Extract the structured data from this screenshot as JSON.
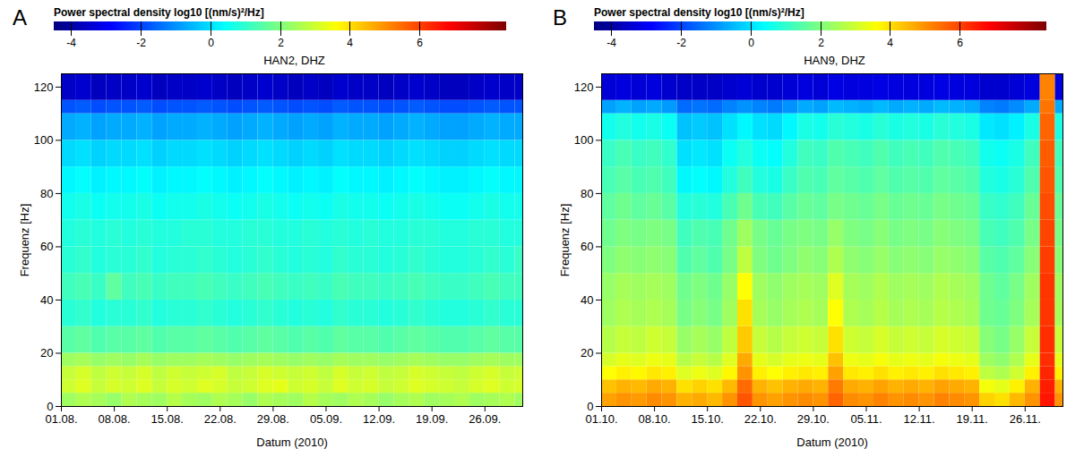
{
  "chart_data": [
    {
      "type": "heatmap",
      "panel": "A",
      "title": "HAN2, DHZ",
      "x_label": "Datum (2010)",
      "y_label": "Frequenz [Hz]",
      "xlim": [
        "2010-08-01",
        "2010-10-01"
      ],
      "xticks": [
        {
          "value": "2010-08-01",
          "label": "01.08."
        },
        {
          "value": "2010-08-08",
          "label": "08.08."
        },
        {
          "value": "2010-08-15",
          "label": "15.08."
        },
        {
          "value": "2010-08-22",
          "label": "22.08."
        },
        {
          "value": "2010-08-29",
          "label": "29.08."
        },
        {
          "value": "2010-09-05",
          "label": "05.09."
        },
        {
          "value": "2010-09-12",
          "label": "12.09."
        },
        {
          "value": "2010-09-19",
          "label": "19.09."
        },
        {
          "value": "2010-09-26",
          "label": "26.09."
        }
      ],
      "ylim": [
        0,
        125
      ],
      "yticks": [
        0,
        20,
        40,
        60,
        80,
        100,
        120
      ],
      "x": [
        "2010-08-01",
        "2010-08-03",
        "2010-08-05",
        "2010-08-07",
        "2010-08-09",
        "2010-08-11",
        "2010-08-13",
        "2010-08-15",
        "2010-08-17",
        "2010-08-19",
        "2010-08-21",
        "2010-08-23",
        "2010-08-25",
        "2010-08-27",
        "2010-08-29",
        "2010-08-31",
        "2010-09-02",
        "2010-09-04",
        "2010-09-06",
        "2010-09-08",
        "2010-09-10",
        "2010-09-12",
        "2010-09-14",
        "2010-09-16",
        "2010-09-18",
        "2010-09-20",
        "2010-09-22",
        "2010-09-24",
        "2010-09-26",
        "2010-09-28",
        "2010-09-30"
      ],
      "y_bins": [
        0,
        5,
        10,
        15,
        20,
        30,
        40,
        50,
        60,
        70,
        80,
        90,
        100,
        110,
        115,
        125
      ],
      "values": [
        [
          2.4,
          2.6,
          2.5,
          2.3,
          2.6,
          2.5,
          2.4,
          2.7,
          2.5,
          2.4,
          2.6,
          2.5,
          2.3,
          2.6,
          2.5,
          2.4,
          2.7,
          2.5,
          2.4,
          2.6,
          2.5,
          2.3,
          2.5,
          2.6,
          2.4,
          2.5,
          2.6,
          2.4,
          2.5,
          2.6,
          2.4
        ],
        [
          3.0,
          3.2,
          2.9,
          3.1,
          3.0,
          3.2,
          2.9,
          3.1,
          3.0,
          3.2,
          3.1,
          2.9,
          3.0,
          3.2,
          3.3,
          3.0,
          3.1,
          2.9,
          3.2,
          3.0,
          3.1,
          2.9,
          3.0,
          3.2,
          3.1,
          3.0,
          2.9,
          3.1,
          3.2,
          3.0,
          3.1
        ],
        [
          2.9,
          3.1,
          2.8,
          3.0,
          2.9,
          3.1,
          2.8,
          3.0,
          2.9,
          3.0,
          3.1,
          2.8,
          2.9,
          3.1,
          3.0,
          2.9,
          3.0,
          2.8,
          3.1,
          2.9,
          3.0,
          2.8,
          2.9,
          3.1,
          3.0,
          2.9,
          2.8,
          3.0,
          3.1,
          2.9,
          3.0
        ],
        [
          2.4,
          2.5,
          2.3,
          2.4,
          2.3,
          2.5,
          2.3,
          2.4,
          2.4,
          2.5,
          2.4,
          2.3,
          2.4,
          2.5,
          2.4,
          2.3,
          2.4,
          2.3,
          2.5,
          2.4,
          2.4,
          2.3,
          2.4,
          2.5,
          2.4,
          2.3,
          2.3,
          2.4,
          2.5,
          2.4,
          2.4
        ],
        [
          1.5,
          1.6,
          1.4,
          1.5,
          1.5,
          1.6,
          1.4,
          1.5,
          1.5,
          1.6,
          1.5,
          1.4,
          1.5,
          1.6,
          1.5,
          1.4,
          1.5,
          1.4,
          1.6,
          1.5,
          1.5,
          1.4,
          1.5,
          1.6,
          1.5,
          1.4,
          1.4,
          1.5,
          1.6,
          1.5,
          1.5
        ],
        [
          0.9,
          1.0,
          0.8,
          0.9,
          0.9,
          1.0,
          0.8,
          0.9,
          0.9,
          1.0,
          0.9,
          0.8,
          0.9,
          1.0,
          0.9,
          0.8,
          0.9,
          0.8,
          1.0,
          0.9,
          0.9,
          0.8,
          0.9,
          1.0,
          0.9,
          0.8,
          0.8,
          0.9,
          1.0,
          0.9,
          0.9
        ],
        [
          1.2,
          1.3,
          1.1,
          1.6,
          1.2,
          1.3,
          1.1,
          1.2,
          1.2,
          1.3,
          1.2,
          1.1,
          1.2,
          1.3,
          1.2,
          1.1,
          1.2,
          1.1,
          1.3,
          1.2,
          1.2,
          1.1,
          1.2,
          1.3,
          1.2,
          1.1,
          1.1,
          1.2,
          1.3,
          1.2,
          1.2
        ],
        [
          0.9,
          1.0,
          0.8,
          0.9,
          0.9,
          1.0,
          0.8,
          0.9,
          0.9,
          1.0,
          0.9,
          0.8,
          0.9,
          1.0,
          0.9,
          0.8,
          0.9,
          0.8,
          1.0,
          0.9,
          0.9,
          0.8,
          0.9,
          1.0,
          0.9,
          0.8,
          0.8,
          0.9,
          1.0,
          0.9,
          1.1
        ],
        [
          0.8,
          0.9,
          0.8,
          0.9,
          0.8,
          0.9,
          0.8,
          0.8,
          0.9,
          0.9,
          0.8,
          0.8,
          0.9,
          0.9,
          0.8,
          0.8,
          0.9,
          0.8,
          0.9,
          0.8,
          0.9,
          0.8,
          0.8,
          0.9,
          0.9,
          0.8,
          0.8,
          0.9,
          0.9,
          0.8,
          0.8
        ],
        [
          0.6,
          0.7,
          0.5,
          0.6,
          0.6,
          0.7,
          0.5,
          0.6,
          0.6,
          0.7,
          0.6,
          0.5,
          0.6,
          0.7,
          0.6,
          0.5,
          0.6,
          0.5,
          0.7,
          0.6,
          0.6,
          0.5,
          0.6,
          0.7,
          0.6,
          0.5,
          0.5,
          0.6,
          0.7,
          0.6,
          0.6
        ],
        [
          0.3,
          0.4,
          0.2,
          0.3,
          0.3,
          0.4,
          0.2,
          0.3,
          0.3,
          0.4,
          0.3,
          0.2,
          0.3,
          0.4,
          0.3,
          0.2,
          0.3,
          0.2,
          0.4,
          0.3,
          0.3,
          0.2,
          0.3,
          0.4,
          0.3,
          0.2,
          0.2,
          0.3,
          0.4,
          0.3,
          0.3
        ],
        [
          -0.1,
          0.0,
          -0.2,
          -0.1,
          -0.1,
          0.0,
          -0.2,
          -0.1,
          -0.1,
          0.0,
          -0.1,
          -0.2,
          -0.1,
          0.0,
          -0.1,
          -0.2,
          -0.1,
          -0.2,
          0.0,
          -0.1,
          -0.1,
          -0.2,
          -0.1,
          0.0,
          -0.1,
          -0.2,
          -0.2,
          -0.1,
          0.0,
          -0.1,
          -0.1
        ],
        [
          -0.7,
          -0.6,
          -0.8,
          -0.7,
          -0.7,
          -0.6,
          -0.8,
          -0.7,
          -0.7,
          -0.6,
          -0.7,
          -0.8,
          -0.7,
          -0.6,
          -0.7,
          -0.8,
          -0.7,
          -0.8,
          -0.6,
          -0.7,
          -0.7,
          -0.8,
          -0.7,
          -0.6,
          -0.7,
          -0.8,
          -0.8,
          -0.7,
          -0.6,
          -0.7,
          -0.7
        ],
        [
          -1.8,
          -1.7,
          -1.9,
          -1.8,
          -1.8,
          -1.7,
          -1.9,
          -1.8,
          -1.8,
          -1.7,
          -1.8,
          -1.9,
          -1.8,
          -1.7,
          -1.8,
          -1.9,
          -1.8,
          -1.9,
          -1.7,
          -1.8,
          -1.8,
          -1.9,
          -1.8,
          -1.7,
          -1.8,
          -1.9,
          -1.9,
          -1.8,
          -1.7,
          -1.8,
          -1.8
        ],
        [
          -3.6,
          -3.5,
          -3.7,
          -3.6,
          -3.6,
          -3.5,
          -3.7,
          -3.6,
          -3.6,
          -3.5,
          -3.6,
          -3.7,
          -3.6,
          -3.5,
          -3.6,
          -3.7,
          -3.6,
          -3.7,
          -3.5,
          -3.6,
          -3.6,
          -3.7,
          -3.6,
          -3.5,
          -3.6,
          -3.7,
          -3.7,
          -3.6,
          -3.5,
          -3.6,
          -3.6
        ]
      ],
      "colorbar": {
        "label": "Power spectral density log10 [(nm/s)²/Hz]",
        "range": [
          -4.5,
          8.5
        ],
        "ticks": [
          -4,
          -2,
          0,
          2,
          4,
          6
        ]
      }
    },
    {
      "type": "heatmap",
      "panel": "B",
      "title": "HAN9, DHZ",
      "x_label": "Datum (2010)",
      "y_label": "Frequenz [Hz]",
      "xlim": [
        "2010-10-01",
        "2010-12-01"
      ],
      "xticks": [
        {
          "value": "2010-10-01",
          "label": "01.10."
        },
        {
          "value": "2010-10-08",
          "label": "08.10."
        },
        {
          "value": "2010-10-15",
          "label": "15.10."
        },
        {
          "value": "2010-10-22",
          "label": "22.10."
        },
        {
          "value": "2010-10-29",
          "label": "29.10."
        },
        {
          "value": "2010-11-05",
          "label": "05.11."
        },
        {
          "value": "2010-11-12",
          "label": "12.11."
        },
        {
          "value": "2010-11-19",
          "label": "19.11."
        },
        {
          "value": "2010-11-26",
          "label": "26.11."
        }
      ],
      "ylim": [
        0,
        125
      ],
      "yticks": [
        0,
        20,
        40,
        60,
        80,
        100,
        120
      ],
      "x": [
        "2010-10-01",
        "2010-10-03",
        "2010-10-05",
        "2010-10-07",
        "2010-10-09",
        "2010-10-11",
        "2010-10-13",
        "2010-10-15",
        "2010-10-17",
        "2010-10-19",
        "2010-10-21",
        "2010-10-23",
        "2010-10-25",
        "2010-10-27",
        "2010-10-29",
        "2010-10-31",
        "2010-11-02",
        "2010-11-04",
        "2010-11-06",
        "2010-11-08",
        "2010-11-10",
        "2010-11-12",
        "2010-11-14",
        "2010-11-16",
        "2010-11-18",
        "2010-11-20",
        "2010-11-22",
        "2010-11-24",
        "2010-11-26",
        "2010-11-28",
        "2010-11-30"
      ],
      "y_bins": [
        0,
        5,
        10,
        15,
        20,
        30,
        40,
        50,
        60,
        70,
        80,
        90,
        100,
        110,
        115,
        125
      ],
      "values": [
        [
          4.8,
          5.0,
          4.9,
          5.1,
          5.0,
          4.6,
          4.7,
          4.5,
          5.0,
          5.8,
          5.0,
          4.8,
          5.0,
          5.1,
          5.0,
          5.6,
          5.1,
          5.0,
          5.2,
          5.0,
          5.1,
          5.0,
          5.2,
          5.1,
          5.0,
          4.2,
          4.0,
          4.5,
          5.0,
          6.6,
          5.0
        ],
        [
          4.4,
          4.6,
          4.5,
          4.7,
          4.6,
          4.0,
          4.2,
          4.0,
          4.5,
          5.5,
          4.6,
          4.4,
          4.6,
          4.7,
          4.6,
          5.3,
          4.7,
          4.6,
          4.8,
          4.6,
          4.7,
          4.6,
          4.8,
          4.7,
          4.6,
          3.5,
          3.3,
          3.8,
          4.6,
          6.5,
          4.6
        ],
        [
          3.6,
          3.8,
          3.7,
          3.9,
          3.8,
          3.2,
          3.4,
          3.2,
          3.7,
          5.0,
          3.8,
          3.6,
          3.8,
          3.9,
          3.8,
          4.8,
          3.9,
          3.8,
          4.0,
          3.8,
          3.9,
          3.8,
          4.0,
          3.9,
          3.8,
          2.8,
          2.6,
          3.0,
          3.8,
          6.4,
          3.8
        ],
        [
          3.1,
          3.3,
          3.2,
          3.4,
          3.3,
          2.7,
          2.9,
          2.7,
          3.2,
          4.7,
          3.3,
          3.1,
          3.3,
          3.4,
          3.3,
          4.4,
          3.4,
          3.3,
          3.5,
          3.3,
          3.4,
          3.3,
          3.5,
          3.4,
          3.3,
          2.4,
          2.2,
          2.6,
          3.3,
          6.3,
          3.3
        ],
        [
          2.7,
          2.9,
          2.8,
          3.0,
          2.9,
          2.3,
          2.5,
          2.3,
          2.8,
          4.3,
          2.9,
          2.7,
          2.9,
          3.0,
          2.9,
          4.0,
          3.0,
          2.9,
          3.1,
          2.9,
          3.0,
          2.9,
          3.1,
          3.0,
          2.9,
          2.1,
          1.9,
          2.3,
          2.9,
          6.3,
          2.9
        ],
        [
          2.4,
          2.6,
          2.5,
          2.6,
          2.5,
          1.9,
          2.1,
          1.9,
          2.4,
          4.0,
          2.5,
          2.3,
          2.5,
          2.6,
          2.5,
          3.6,
          2.6,
          2.5,
          2.7,
          2.5,
          2.6,
          2.5,
          2.7,
          2.6,
          2.5,
          1.8,
          1.7,
          2.0,
          2.5,
          6.2,
          2.5
        ],
        [
          2.3,
          2.5,
          2.4,
          2.5,
          2.4,
          1.8,
          2.0,
          1.8,
          2.3,
          3.6,
          2.4,
          2.2,
          2.4,
          2.5,
          2.4,
          3.2,
          2.5,
          2.4,
          2.6,
          2.4,
          2.5,
          2.4,
          2.6,
          2.5,
          2.4,
          1.8,
          1.6,
          1.9,
          2.4,
          6.2,
          2.4
        ],
        [
          2.0,
          2.2,
          2.1,
          2.2,
          2.1,
          1.4,
          1.6,
          1.4,
          1.9,
          2.8,
          2.0,
          1.8,
          2.0,
          2.2,
          2.1,
          2.6,
          2.2,
          2.1,
          2.3,
          2.1,
          2.2,
          2.1,
          2.3,
          2.2,
          2.1,
          1.5,
          1.4,
          1.6,
          2.1,
          6.1,
          2.1
        ],
        [
          1.8,
          2.0,
          1.9,
          2.0,
          1.9,
          1.2,
          1.4,
          1.3,
          1.8,
          2.4,
          1.9,
          1.7,
          1.9,
          2.0,
          1.9,
          2.3,
          2.0,
          1.9,
          2.1,
          1.9,
          2.0,
          1.9,
          2.1,
          2.0,
          1.9,
          1.3,
          1.2,
          1.4,
          1.9,
          6.0,
          1.9
        ],
        [
          1.6,
          1.8,
          1.6,
          1.7,
          1.5,
          0.8,
          0.9,
          0.8,
          1.3,
          1.8,
          1.3,
          1.2,
          1.5,
          1.7,
          1.6,
          1.9,
          1.8,
          1.7,
          1.9,
          1.7,
          1.8,
          1.7,
          1.9,
          1.8,
          1.7,
          1.1,
          1.0,
          1.2,
          1.7,
          5.9,
          1.7
        ],
        [
          1.3,
          1.5,
          1.3,
          1.4,
          1.2,
          0.3,
          0.4,
          0.3,
          0.8,
          1.2,
          0.8,
          0.7,
          1.1,
          1.4,
          1.3,
          1.6,
          1.5,
          1.4,
          1.6,
          1.4,
          1.5,
          1.4,
          1.6,
          1.5,
          1.4,
          0.8,
          0.7,
          0.9,
          1.4,
          5.8,
          1.4
        ],
        [
          1.1,
          1.3,
          1.1,
          1.2,
          1.0,
          0.0,
          0.1,
          0.0,
          0.5,
          0.8,
          0.5,
          0.4,
          0.8,
          1.2,
          1.1,
          1.4,
          1.3,
          1.2,
          1.4,
          1.2,
          1.3,
          1.2,
          1.4,
          1.3,
          1.2,
          0.6,
          0.5,
          0.7,
          1.2,
          5.7,
          1.2
        ],
        [
          0.6,
          0.8,
          0.6,
          0.7,
          0.5,
          -0.4,
          -0.3,
          -0.4,
          0.0,
          0.3,
          0.0,
          -0.1,
          0.3,
          0.7,
          0.6,
          0.9,
          0.8,
          0.7,
          0.9,
          0.7,
          0.8,
          0.7,
          0.9,
          0.8,
          0.7,
          0.1,
          0.0,
          0.2,
          0.7,
          5.6,
          0.7
        ],
        [
          -0.8,
          -0.6,
          -0.8,
          -0.7,
          -0.9,
          -1.5,
          -1.4,
          -1.5,
          -1.2,
          -1.0,
          -1.2,
          -1.3,
          -1.0,
          -0.7,
          -0.8,
          -0.5,
          -0.6,
          -0.7,
          -0.5,
          -0.7,
          -0.6,
          -0.7,
          -0.5,
          -0.6,
          -0.7,
          -1.2,
          -1.3,
          -1.1,
          -0.7,
          5.4,
          -0.7
        ],
        [
          -3.4,
          -3.3,
          -3.4,
          -3.3,
          -3.5,
          -3.6,
          -3.6,
          -3.6,
          -3.5,
          -3.4,
          -3.5,
          -3.5,
          -3.4,
          -3.3,
          -3.4,
          -3.2,
          -3.3,
          -3.3,
          -3.2,
          -3.3,
          -3.3,
          -3.3,
          -3.2,
          -3.3,
          -3.3,
          -3.5,
          -3.5,
          -3.4,
          -3.3,
          5.2,
          -3.3
        ]
      ],
      "colorbar": {
        "label": "Power spectral density log10 [(nm/s)²/Hz]",
        "range": [
          -4.5,
          8.5
        ],
        "ticks": [
          -4,
          -2,
          0,
          2,
          4,
          6
        ]
      }
    }
  ]
}
